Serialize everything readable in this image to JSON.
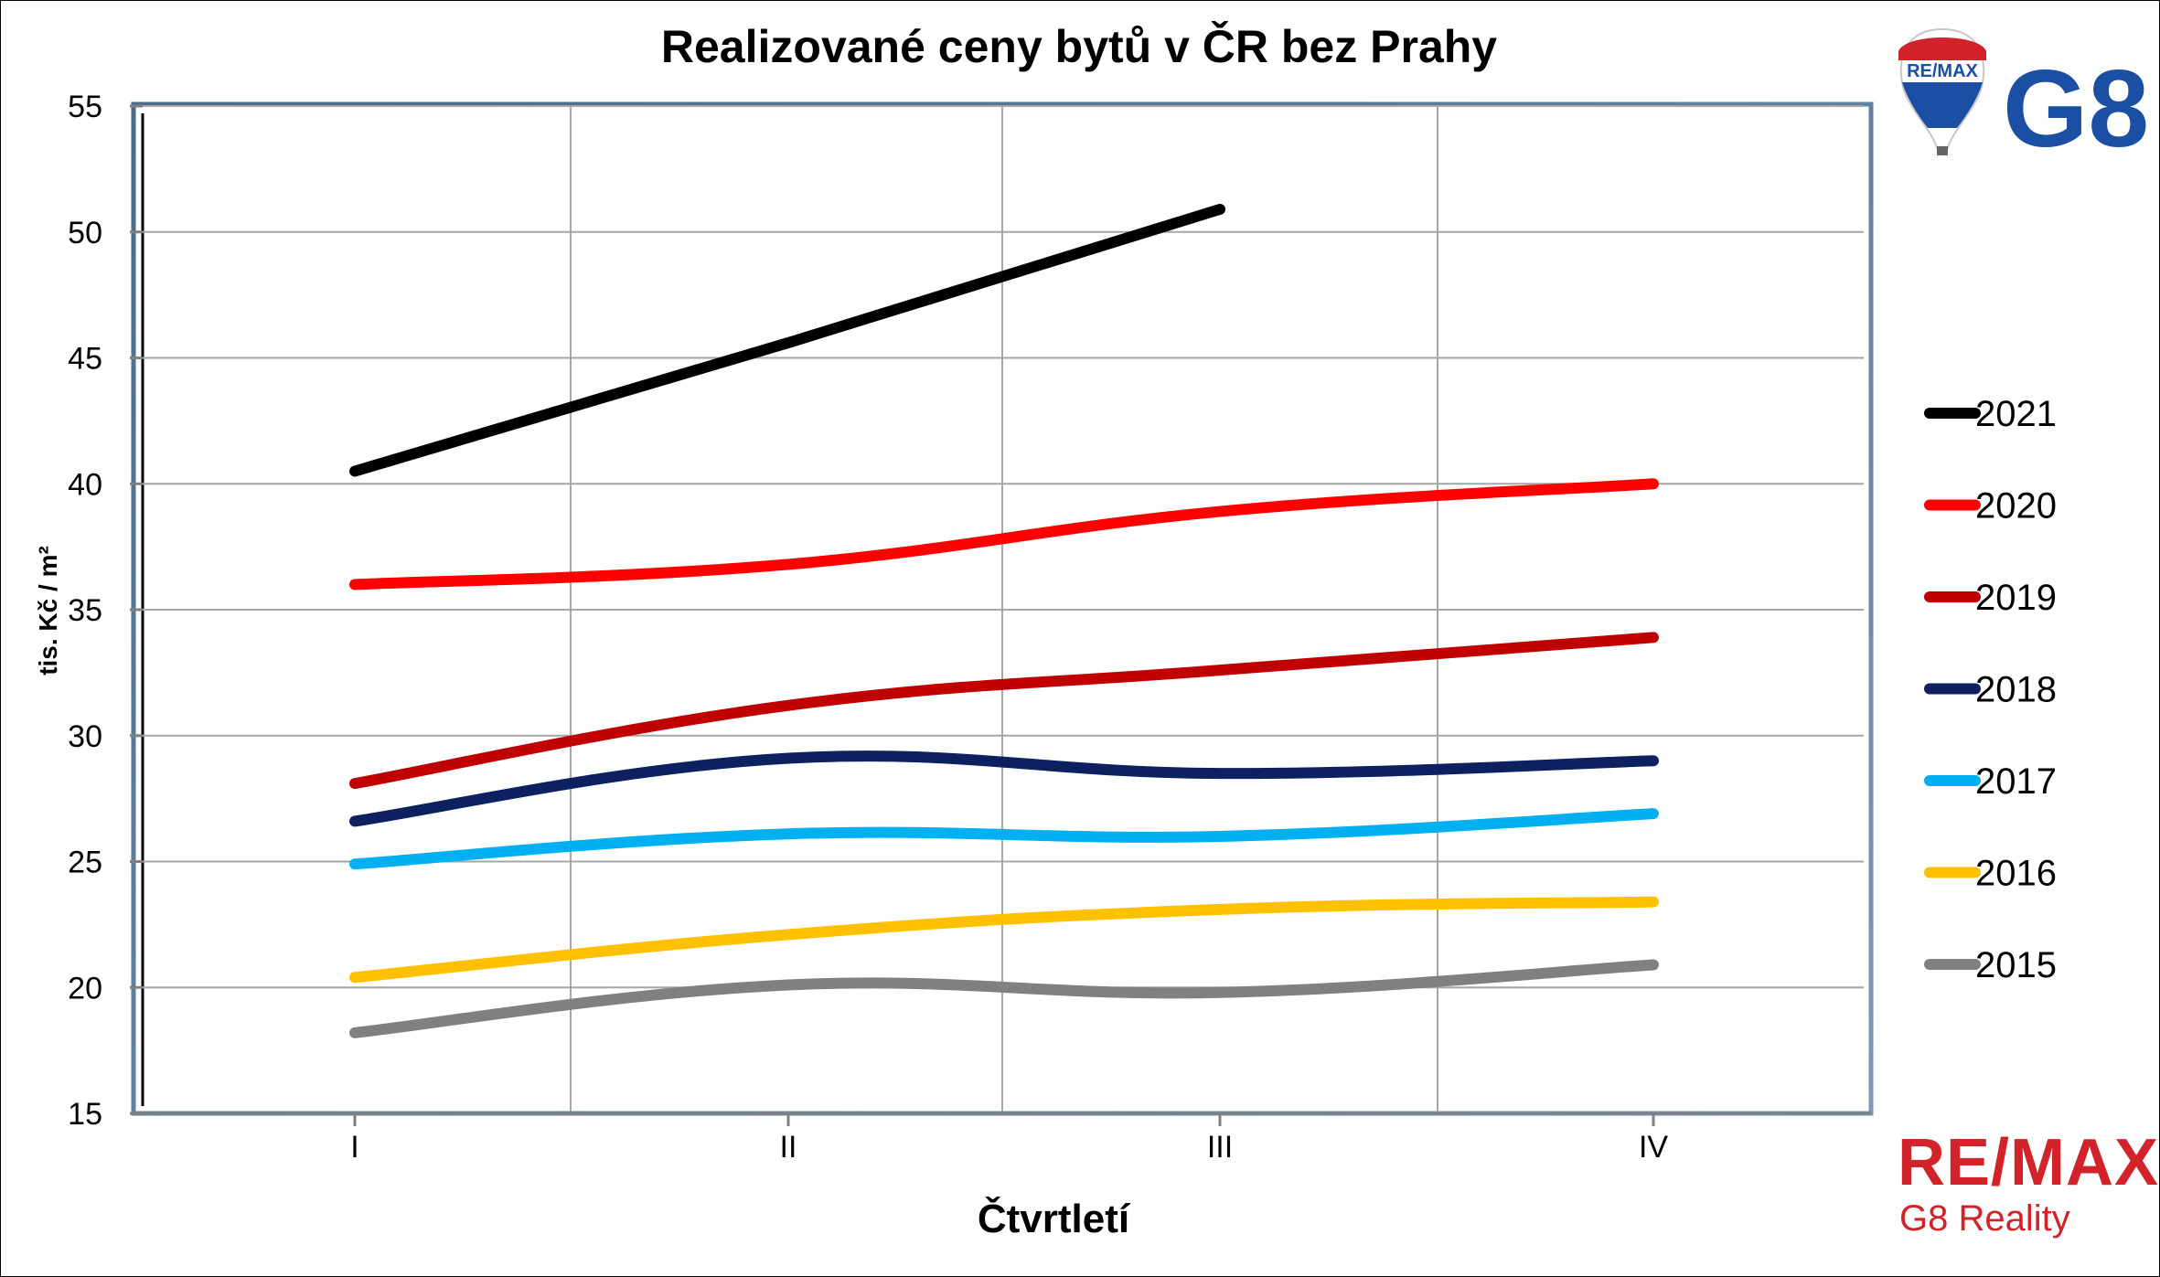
{
  "chart_data": {
    "type": "line",
    "title": "Realizované ceny bytů v ČR bez Prahy",
    "xlabel": "Čtvrtletí",
    "ylabel": "tis. Kč / m²",
    "categories": [
      "I",
      "II",
      "III",
      "IV"
    ],
    "ylim": [
      15,
      55
    ],
    "yticks": [
      15,
      20,
      25,
      30,
      35,
      40,
      45,
      50,
      55
    ],
    "grid": true,
    "legend_position": "right",
    "series": [
      {
        "name": "2021",
        "color": "#000000",
        "values": [
          40.5,
          45.6,
          50.9,
          null
        ]
      },
      {
        "name": "2020",
        "color": "#ff0000",
        "values": [
          36.0,
          36.8,
          38.9,
          40.0
        ]
      },
      {
        "name": "2019",
        "color": "#c00000",
        "values": [
          28.1,
          31.2,
          32.6,
          33.9
        ]
      },
      {
        "name": "2018",
        "color": "#0d2060",
        "values": [
          26.6,
          29.1,
          28.5,
          29.0
        ]
      },
      {
        "name": "2017",
        "color": "#00b0f0",
        "values": [
          24.9,
          26.1,
          26.0,
          26.9
        ]
      },
      {
        "name": "2016",
        "color": "#ffc000",
        "values": [
          20.4,
          22.1,
          23.1,
          23.4
        ]
      },
      {
        "name": "2015",
        "color": "#808080",
        "values": [
          18.2,
          20.1,
          19.8,
          20.9
        ]
      }
    ]
  },
  "branding": {
    "balloon_text": "RE/MAX",
    "g8": "G8",
    "remax": "RE/MAX",
    "sub": "G8 Reality",
    "brand_red": "#d2232a",
    "brand_blue": "#1a4fa3"
  }
}
